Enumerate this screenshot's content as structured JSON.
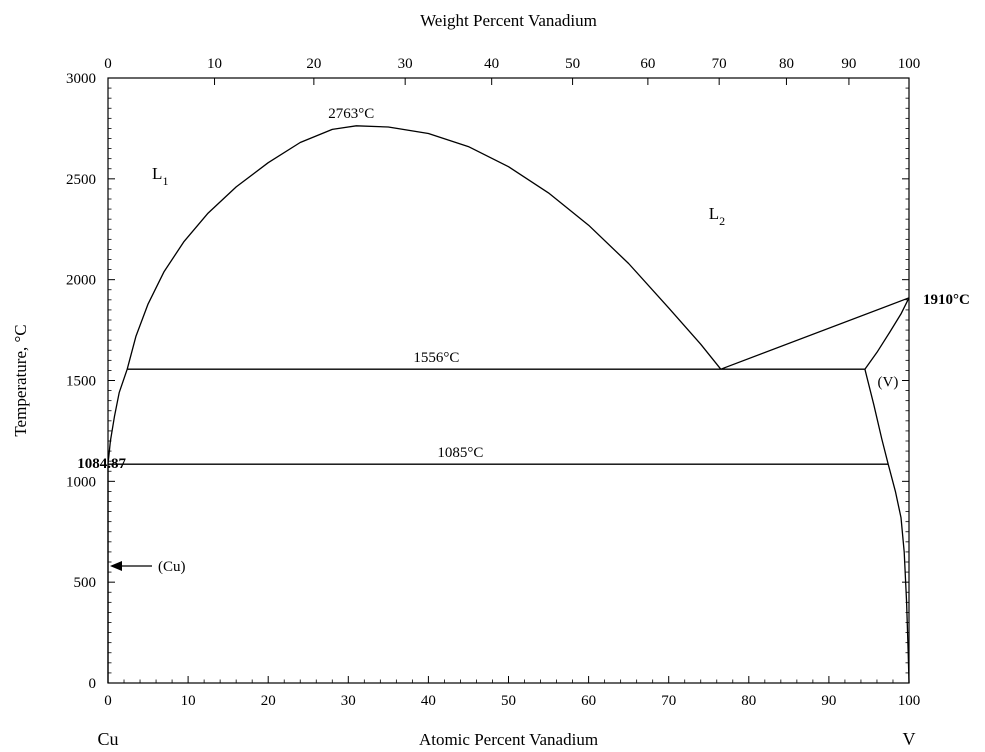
{
  "chart_data": {
    "type": "line",
    "title": "",
    "xlabel_bottom": "Atomic Percent Vanadium",
    "xlabel_top": "Weight Percent Vanadium",
    "ylabel": "Temperature, °C",
    "xlim": [
      0,
      100
    ],
    "ylim": [
      0,
      3000
    ],
    "x_ticks": [
      "0",
      "10",
      "20",
      "30",
      "40",
      "50",
      "60",
      "70",
      "80",
      "90",
      "100"
    ],
    "x_top_ticks": [
      "0",
      "10",
      "20",
      "30",
      "40",
      "50",
      "60",
      "70",
      "80",
      "90",
      "100"
    ],
    "x_top_tick_positions_at_pct": [
      0,
      13.3,
      25.7,
      37.1,
      47.9,
      58.0,
      67.4,
      76.3,
      84.7,
      92.5,
      100
    ],
    "y_ticks": [
      "0",
      "500",
      "1000",
      "1500",
      "2000",
      "2500",
      "3000"
    ],
    "grid": false,
    "end_members": {
      "left": "Cu",
      "right": "V"
    },
    "series": [
      {
        "points": [
          [
            0,
            1084.87
          ],
          [
            0.3,
            1200
          ],
          [
            0.8,
            1320
          ],
          [
            1.4,
            1440
          ],
          [
            2.4,
            1556
          ]
        ]
      },
      {
        "points": [
          [
            2.4,
            1556
          ],
          [
            3.5,
            1720
          ],
          [
            5,
            1880
          ],
          [
            7,
            2040
          ],
          [
            9.5,
            2190
          ],
          [
            12.5,
            2330
          ],
          [
            16,
            2460
          ],
          [
            20,
            2580
          ],
          [
            24,
            2680
          ],
          [
            28,
            2745
          ],
          [
            31,
            2763
          ],
          [
            35,
            2757
          ],
          [
            40,
            2725
          ],
          [
            45,
            2660
          ],
          [
            50,
            2560
          ],
          [
            55,
            2430
          ],
          [
            60,
            2270
          ],
          [
            65,
            2080
          ],
          [
            70,
            1860
          ],
          [
            74,
            1680
          ],
          [
            76.5,
            1556
          ]
        ]
      },
      {
        "points": [
          [
            76.5,
            1556
          ],
          [
            100,
            1910
          ]
        ]
      },
      {
        "points": [
          [
            94.5,
            1556
          ],
          [
            96,
            1640
          ],
          [
            97.6,
            1740
          ],
          [
            99,
            1830
          ],
          [
            100,
            1910
          ]
        ]
      },
      {
        "points": [
          [
            94.5,
            1556
          ],
          [
            95.6,
            1380
          ],
          [
            96.6,
            1210
          ],
          [
            97.4,
            1085
          ]
        ]
      },
      {
        "points": [
          [
            97.4,
            1085
          ],
          [
            98.3,
            950
          ],
          [
            99.0,
            820
          ],
          [
            99.4,
            650
          ],
          [
            99.7,
            400
          ],
          [
            99.9,
            150
          ],
          [
            100,
            0
          ]
        ]
      },
      {
        "points": [
          [
            0,
            1084.87
          ],
          [
            0,
            0
          ]
        ]
      },
      {
        "points": [
          [
            2.4,
            1556
          ],
          [
            94.5,
            1556
          ]
        ]
      },
      {
        "points": [
          [
            0,
            1085
          ],
          [
            97.4,
            1085
          ]
        ]
      }
    ],
    "annotations": [
      {
        "text": "2763°C",
        "x": 31,
        "y": 2763
      },
      {
        "text": "1556°C",
        "x": 41,
        "y": 1556
      },
      {
        "text": "1085°C",
        "x": 44,
        "y": 1085
      },
      {
        "text": "1910°C",
        "x": 100,
        "y": 1910
      },
      {
        "text": "1084.87",
        "x": 0,
        "y": 1084.87
      },
      {
        "text": "(Cu)",
        "x": 0,
        "y": 580
      },
      {
        "text": "(V)",
        "x": 96.5,
        "y": 1500
      }
    ],
    "phase_labels": [
      {
        "main": "L",
        "sub": "1",
        "x": 5.5,
        "y": 2500
      },
      {
        "main": "L",
        "sub": "2",
        "x": 75,
        "y": 2300
      }
    ]
  }
}
